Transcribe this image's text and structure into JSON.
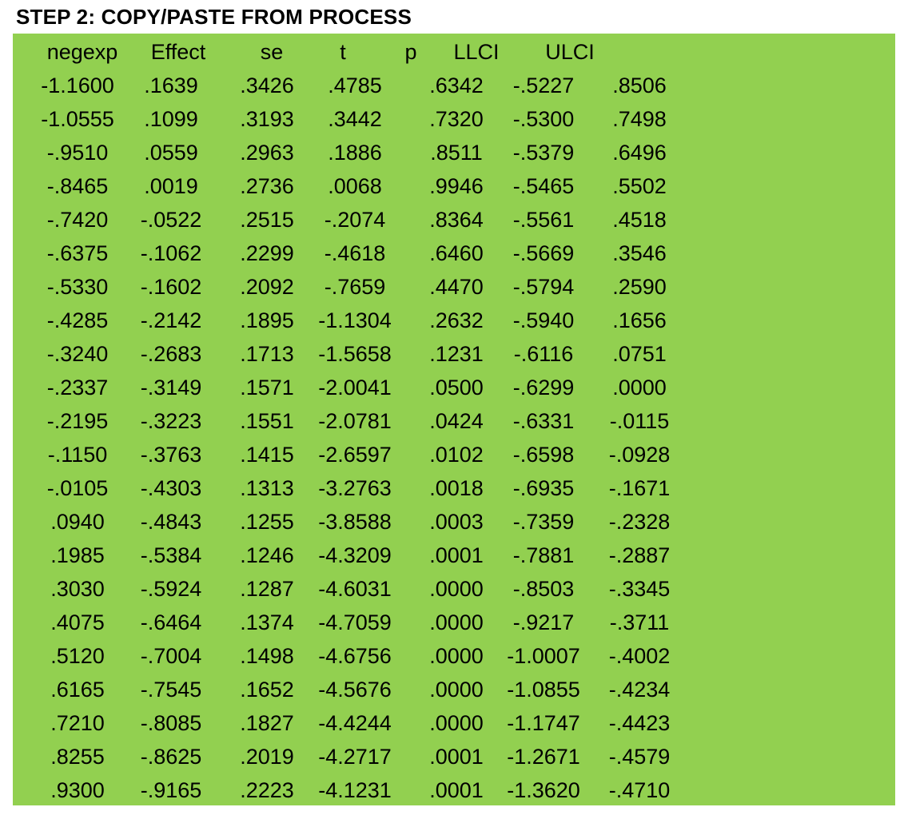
{
  "title": "STEP 2: COPY/PASTE FROM PROCESS",
  "headers": [
    "negexp",
    "Effect",
    "se",
    "t",
    "p",
    "LLCI",
    "ULCI"
  ],
  "rows": [
    [
      "-1.1600",
      ".1639",
      ".3426",
      ".4785",
      ".6342",
      "-.5227",
      ".8506"
    ],
    [
      "-1.0555",
      ".1099",
      ".3193",
      ".3442",
      ".7320",
      "-.5300",
      ".7498"
    ],
    [
      "-.9510",
      ".0559",
      ".2963",
      ".1886",
      ".8511",
      "-.5379",
      ".6496"
    ],
    [
      "-.8465",
      ".0019",
      ".2736",
      ".0068",
      ".9946",
      "-.5465",
      ".5502"
    ],
    [
      "-.7420",
      "-.0522",
      ".2515",
      "-.2074",
      ".8364",
      "-.5561",
      ".4518"
    ],
    [
      "-.6375",
      "-.1062",
      ".2299",
      "-.4618",
      ".6460",
      "-.5669",
      ".3546"
    ],
    [
      "-.5330",
      "-.1602",
      ".2092",
      "-.7659",
      ".4470",
      "-.5794",
      ".2590"
    ],
    [
      "-.4285",
      "-.2142",
      ".1895",
      "-1.1304",
      ".2632",
      "-.5940",
      ".1656"
    ],
    [
      "-.3240",
      "-.2683",
      ".1713",
      "-1.5658",
      ".1231",
      "-.6116",
      ".0751"
    ],
    [
      "-.2337",
      "-.3149",
      ".1571",
      "-2.0041",
      ".0500",
      "-.6299",
      ".0000"
    ],
    [
      "-.2195",
      "-.3223",
      ".1551",
      "-2.0781",
      ".0424",
      "-.6331",
      "-.0115"
    ],
    [
      "-.1150",
      "-.3763",
      ".1415",
      "-2.6597",
      ".0102",
      "-.6598",
      "-.0928"
    ],
    [
      "-.0105",
      "-.4303",
      ".1313",
      "-3.2763",
      ".0018",
      "-.6935",
      "-.1671"
    ],
    [
      ".0940",
      "-.4843",
      ".1255",
      "-3.8588",
      ".0003",
      "-.7359",
      "-.2328"
    ],
    [
      ".1985",
      "-.5384",
      ".1246",
      "-4.3209",
      ".0001",
      "-.7881",
      "-.2887"
    ],
    [
      ".3030",
      "-.5924",
      ".1287",
      "-4.6031",
      ".0000",
      "-.8503",
      "-.3345"
    ],
    [
      ".4075",
      "-.6464",
      ".1374",
      "-4.7059",
      ".0000",
      "-.9217",
      "-.3711"
    ],
    [
      ".5120",
      "-.7004",
      ".1498",
      "-4.6756",
      ".0000",
      "-1.0007",
      "-.4002"
    ],
    [
      ".6165",
      "-.7545",
      ".1652",
      "-4.5676",
      ".0000",
      "-1.0855",
      "-.4234"
    ],
    [
      ".7210",
      "-.8085",
      ".1827",
      "-4.4244",
      ".0000",
      "-1.1747",
      "-.4423"
    ],
    [
      ".8255",
      "-.8625",
      ".2019",
      "-4.2717",
      ".0001",
      "-1.2671",
      "-.4579"
    ],
    [
      ".9300",
      "-.9165",
      ".2223",
      "-4.1231",
      ".0001",
      "-1.3620",
      "-.4710"
    ]
  ],
  "colors": {
    "panel_background": "#92d050",
    "text": "#000000"
  }
}
